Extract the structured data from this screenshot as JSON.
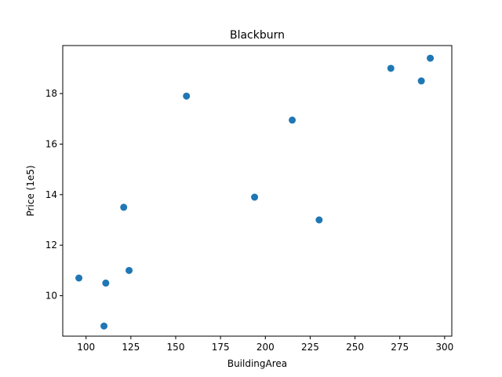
{
  "chart_data": {
    "type": "scatter",
    "title": "Blackburn",
    "xlabel": "BuildingArea",
    "ylabel": "Price (1e5)",
    "xlim": [
      87,
      304
    ],
    "ylim": [
      8.4,
      19.9
    ],
    "xticks": [
      100,
      125,
      150,
      175,
      200,
      225,
      250,
      275,
      300
    ],
    "yticks": [
      10,
      12,
      14,
      16,
      18
    ],
    "grid": false,
    "marker_color": "#1f77b4",
    "series": [
      {
        "x": [
          96,
          110,
          111,
          121,
          124,
          156,
          194,
          215,
          230,
          270,
          287,
          292
        ],
        "y": [
          10.7,
          8.8,
          10.5,
          13.5,
          11.0,
          17.9,
          13.9,
          16.95,
          13.0,
          19.0,
          18.5,
          19.4
        ]
      }
    ]
  }
}
